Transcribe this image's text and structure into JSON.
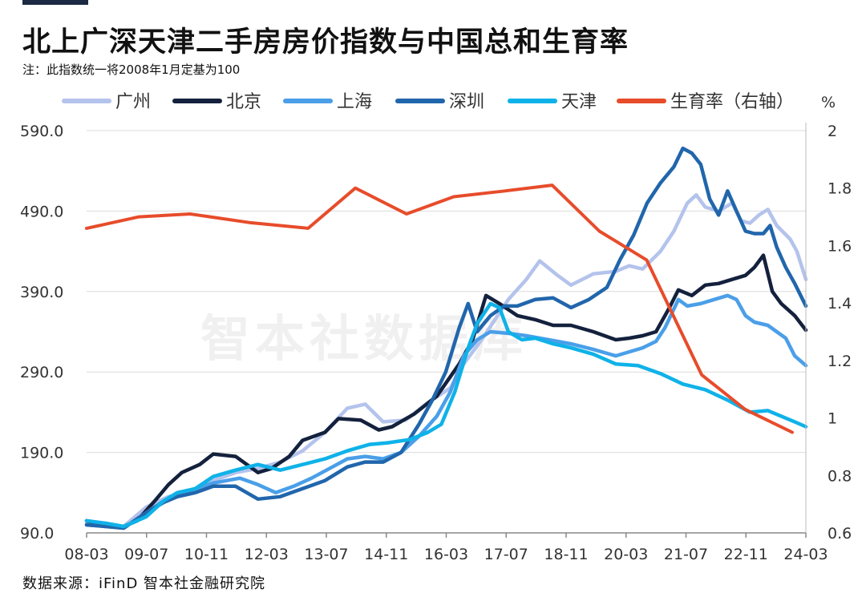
{
  "header": {
    "title": "北上广深天津二手房房价指数与中国总和生育率",
    "note": "注：此指数统一将2008年1月定基为100"
  },
  "footer": {
    "source": "数据来源：iFinD 智本社金融研究院"
  },
  "watermark": "智本社数据库",
  "chart_data": {
    "type": "line",
    "y_left": {
      "ticks": [
        "590.0",
        "490.0",
        "390.0",
        "290.0",
        "190.0",
        "90.0"
      ],
      "range": [
        90,
        590
      ]
    },
    "y_right": {
      "unit": "%",
      "ticks": [
        "2",
        "1.8",
        "1.6",
        "1.4",
        "1.2",
        "1",
        "0.8",
        "0.6"
      ],
      "range": [
        0.6,
        2
      ]
    },
    "x_ticks": [
      "08-03",
      "09-07",
      "10-11",
      "12-03",
      "13-07",
      "14-11",
      "16-03",
      "17-07",
      "18-11",
      "20-03",
      "21-07",
      "22-11",
      "24-03"
    ],
    "grid": true,
    "legend_position": "top",
    "series": [
      {
        "name": "广州",
        "axis": "left",
        "color": "#b4c3ec",
        "points": [
          [
            2008.17,
            102
          ],
          [
            2008.6,
            100
          ],
          [
            2009.0,
            98
          ],
          [
            2009.5,
            122
          ],
          [
            2010.0,
            135
          ],
          [
            2010.5,
            140
          ],
          [
            2011.0,
            155
          ],
          [
            2011.5,
            165
          ],
          [
            2012.0,
            170
          ],
          [
            2012.5,
            178
          ],
          [
            2013.0,
            192
          ],
          [
            2013.5,
            215
          ],
          [
            2014.0,
            245
          ],
          [
            2014.4,
            250
          ],
          [
            2014.8,
            228
          ],
          [
            2015.3,
            230
          ],
          [
            2015.8,
            252
          ],
          [
            2016.3,
            270
          ],
          [
            2016.6,
            300
          ],
          [
            2017.0,
            330
          ],
          [
            2017.6,
            380
          ],
          [
            2018.0,
            405
          ],
          [
            2018.3,
            428
          ],
          [
            2018.7,
            410
          ],
          [
            2019.0,
            398
          ],
          [
            2019.5,
            412
          ],
          [
            2020.0,
            415
          ],
          [
            2020.3,
            422
          ],
          [
            2020.6,
            418
          ],
          [
            2021.0,
            440
          ],
          [
            2021.3,
            465
          ],
          [
            2021.6,
            500
          ],
          [
            2021.8,
            510
          ],
          [
            2022.0,
            495
          ],
          [
            2022.3,
            490
          ],
          [
            2022.6,
            500
          ],
          [
            2022.8,
            478
          ],
          [
            2023.0,
            475
          ],
          [
            2023.2,
            485
          ],
          [
            2023.4,
            492
          ],
          [
            2023.6,
            472
          ],
          [
            2023.9,
            455
          ],
          [
            2024.05,
            440
          ],
          [
            2024.25,
            405
          ]
        ]
      },
      {
        "name": "北京",
        "axis": "left",
        "color": "#14213d",
        "points": [
          [
            2008.17,
            105
          ],
          [
            2008.6,
            100
          ],
          [
            2009.0,
            98
          ],
          [
            2009.3,
            105
          ],
          [
            2009.7,
            130
          ],
          [
            2010.0,
            150
          ],
          [
            2010.3,
            165
          ],
          [
            2010.7,
            175
          ],
          [
            2011.0,
            188
          ],
          [
            2011.5,
            185
          ],
          [
            2012.0,
            165
          ],
          [
            2012.3,
            170
          ],
          [
            2012.7,
            185
          ],
          [
            2013.0,
            205
          ],
          [
            2013.5,
            215
          ],
          [
            2013.8,
            232
          ],
          [
            2014.3,
            230
          ],
          [
            2014.7,
            218
          ],
          [
            2015.0,
            222
          ],
          [
            2015.5,
            238
          ],
          [
            2016.0,
            260
          ],
          [
            2016.5,
            300
          ],
          [
            2016.8,
            330
          ],
          [
            2017.1,
            385
          ],
          [
            2017.4,
            375
          ],
          [
            2017.8,
            360
          ],
          [
            2018.2,
            355
          ],
          [
            2018.6,
            348
          ],
          [
            2019.0,
            348
          ],
          [
            2019.5,
            340
          ],
          [
            2020.0,
            330
          ],
          [
            2020.3,
            332
          ],
          [
            2020.6,
            335
          ],
          [
            2020.9,
            340
          ],
          [
            2021.2,
            370
          ],
          [
            2021.4,
            392
          ],
          [
            2021.7,
            385
          ],
          [
            2022.0,
            398
          ],
          [
            2022.3,
            400
          ],
          [
            2022.6,
            405
          ],
          [
            2022.9,
            410
          ],
          [
            2023.1,
            420
          ],
          [
            2023.3,
            435
          ],
          [
            2023.5,
            390
          ],
          [
            2023.7,
            375
          ],
          [
            2024.0,
            360
          ],
          [
            2024.25,
            342
          ]
        ]
      },
      {
        "name": "上海",
        "axis": "left",
        "color": "#4a9fe8",
        "points": [
          [
            2008.17,
            100
          ],
          [
            2008.6,
            98
          ],
          [
            2009.0,
            96
          ],
          [
            2009.5,
            115
          ],
          [
            2009.9,
            130
          ],
          [
            2010.2,
            138
          ],
          [
            2010.6,
            145
          ],
          [
            2011.0,
            152
          ],
          [
            2011.6,
            158
          ],
          [
            2012.0,
            150
          ],
          [
            2012.4,
            140
          ],
          [
            2012.8,
            148
          ],
          [
            2013.2,
            158
          ],
          [
            2013.6,
            170
          ],
          [
            2014.0,
            182
          ],
          [
            2014.4,
            185
          ],
          [
            2014.8,
            182
          ],
          [
            2015.2,
            190
          ],
          [
            2015.6,
            210
          ],
          [
            2016.0,
            235
          ],
          [
            2016.3,
            265
          ],
          [
            2016.6,
            310
          ],
          [
            2016.9,
            330
          ],
          [
            2017.2,
            340
          ],
          [
            2017.6,
            338
          ],
          [
            2018.0,
            335
          ],
          [
            2018.5,
            330
          ],
          [
            2019.0,
            325
          ],
          [
            2019.5,
            318
          ],
          [
            2020.0,
            310
          ],
          [
            2020.3,
            315
          ],
          [
            2020.6,
            320
          ],
          [
            2020.9,
            328
          ],
          [
            2021.1,
            345
          ],
          [
            2021.4,
            380
          ],
          [
            2021.6,
            372
          ],
          [
            2021.9,
            375
          ],
          [
            2022.2,
            380
          ],
          [
            2022.5,
            385
          ],
          [
            2022.7,
            380
          ],
          [
            2022.9,
            360
          ],
          [
            2023.1,
            352
          ],
          [
            2023.4,
            348
          ],
          [
            2023.6,
            340
          ],
          [
            2023.8,
            332
          ],
          [
            2024.0,
            310
          ],
          [
            2024.25,
            298
          ]
        ]
      },
      {
        "name": "深圳",
        "axis": "left",
        "color": "#2166ac",
        "points": [
          [
            2008.17,
            100
          ],
          [
            2008.6,
            98
          ],
          [
            2009.0,
            96
          ],
          [
            2009.5,
            115
          ],
          [
            2009.9,
            128
          ],
          [
            2010.2,
            135
          ],
          [
            2010.6,
            140
          ],
          [
            2011.0,
            148
          ],
          [
            2011.5,
            148
          ],
          [
            2012.0,
            132
          ],
          [
            2012.5,
            135
          ],
          [
            2013.0,
            145
          ],
          [
            2013.5,
            155
          ],
          [
            2014.0,
            172
          ],
          [
            2014.4,
            178
          ],
          [
            2014.8,
            178
          ],
          [
            2015.2,
            190
          ],
          [
            2015.6,
            225
          ],
          [
            2015.9,
            255
          ],
          [
            2016.2,
            290
          ],
          [
            2016.5,
            345
          ],
          [
            2016.7,
            375
          ],
          [
            2016.9,
            340
          ],
          [
            2017.2,
            360
          ],
          [
            2017.5,
            372
          ],
          [
            2017.8,
            372
          ],
          [
            2018.2,
            380
          ],
          [
            2018.6,
            382
          ],
          [
            2019.0,
            370
          ],
          [
            2019.4,
            380
          ],
          [
            2019.8,
            395
          ],
          [
            2020.1,
            430
          ],
          [
            2020.4,
            460
          ],
          [
            2020.7,
            500
          ],
          [
            2021.0,
            525
          ],
          [
            2021.3,
            545
          ],
          [
            2021.5,
            568
          ],
          [
            2021.7,
            562
          ],
          [
            2021.9,
            548
          ],
          [
            2022.1,
            505
          ],
          [
            2022.3,
            485
          ],
          [
            2022.5,
            515
          ],
          [
            2022.7,
            490
          ],
          [
            2022.9,
            465
          ],
          [
            2023.1,
            462
          ],
          [
            2023.3,
            462
          ],
          [
            2023.45,
            472
          ],
          [
            2023.6,
            445
          ],
          [
            2023.8,
            420
          ],
          [
            2024.0,
            400
          ],
          [
            2024.25,
            372
          ]
        ]
      },
      {
        "name": "天津",
        "axis": "left",
        "color": "#0fb2e8",
        "points": [
          [
            2008.17,
            105
          ],
          [
            2008.6,
            102
          ],
          [
            2009.0,
            98
          ],
          [
            2009.5,
            110
          ],
          [
            2009.9,
            130
          ],
          [
            2010.2,
            140
          ],
          [
            2010.6,
            145
          ],
          [
            2011.0,
            160
          ],
          [
            2011.5,
            168
          ],
          [
            2012.0,
            175
          ],
          [
            2012.5,
            168
          ],
          [
            2013.0,
            175
          ],
          [
            2013.5,
            182
          ],
          [
            2014.0,
            192
          ],
          [
            2014.5,
            200
          ],
          [
            2014.9,
            202
          ],
          [
            2015.4,
            206
          ],
          [
            2015.8,
            215
          ],
          [
            2016.1,
            225
          ],
          [
            2016.4,
            265
          ],
          [
            2016.7,
            320
          ],
          [
            2016.9,
            350
          ],
          [
            2017.2,
            375
          ],
          [
            2017.4,
            370
          ],
          [
            2017.6,
            340
          ],
          [
            2017.9,
            330
          ],
          [
            2018.2,
            332
          ],
          [
            2018.6,
            325
          ],
          [
            2019.0,
            320
          ],
          [
            2019.5,
            312
          ],
          [
            2020.0,
            300
          ],
          [
            2020.5,
            298
          ],
          [
            2021.0,
            288
          ],
          [
            2021.5,
            275
          ],
          [
            2022.0,
            268
          ],
          [
            2022.5,
            255
          ],
          [
            2023.0,
            240
          ],
          [
            2023.4,
            242
          ],
          [
            2023.7,
            235
          ],
          [
            2024.0,
            228
          ],
          [
            2024.25,
            222
          ]
        ]
      },
      {
        "name": "生育率（右轴）",
        "axis": "right",
        "color": "#e74c2b",
        "points": [
          [
            2008.17,
            1.66
          ],
          [
            2009.5,
            1.7
          ],
          [
            2010.8,
            1.71
          ],
          [
            2012.3,
            1.68
          ],
          [
            2013.8,
            1.66
          ],
          [
            2015.0,
            1.8
          ],
          [
            2016.3,
            1.71
          ],
          [
            2017.5,
            1.77
          ],
          [
            2018.8,
            1.79
          ],
          [
            2020.0,
            1.81
          ],
          [
            2021.2,
            1.65
          ],
          [
            2022.4,
            1.55
          ],
          [
            2023.8,
            1.15
          ],
          [
            2024.9,
            1.03
          ],
          [
            2026.1,
            0.95
          ]
        ]
      }
    ]
  }
}
